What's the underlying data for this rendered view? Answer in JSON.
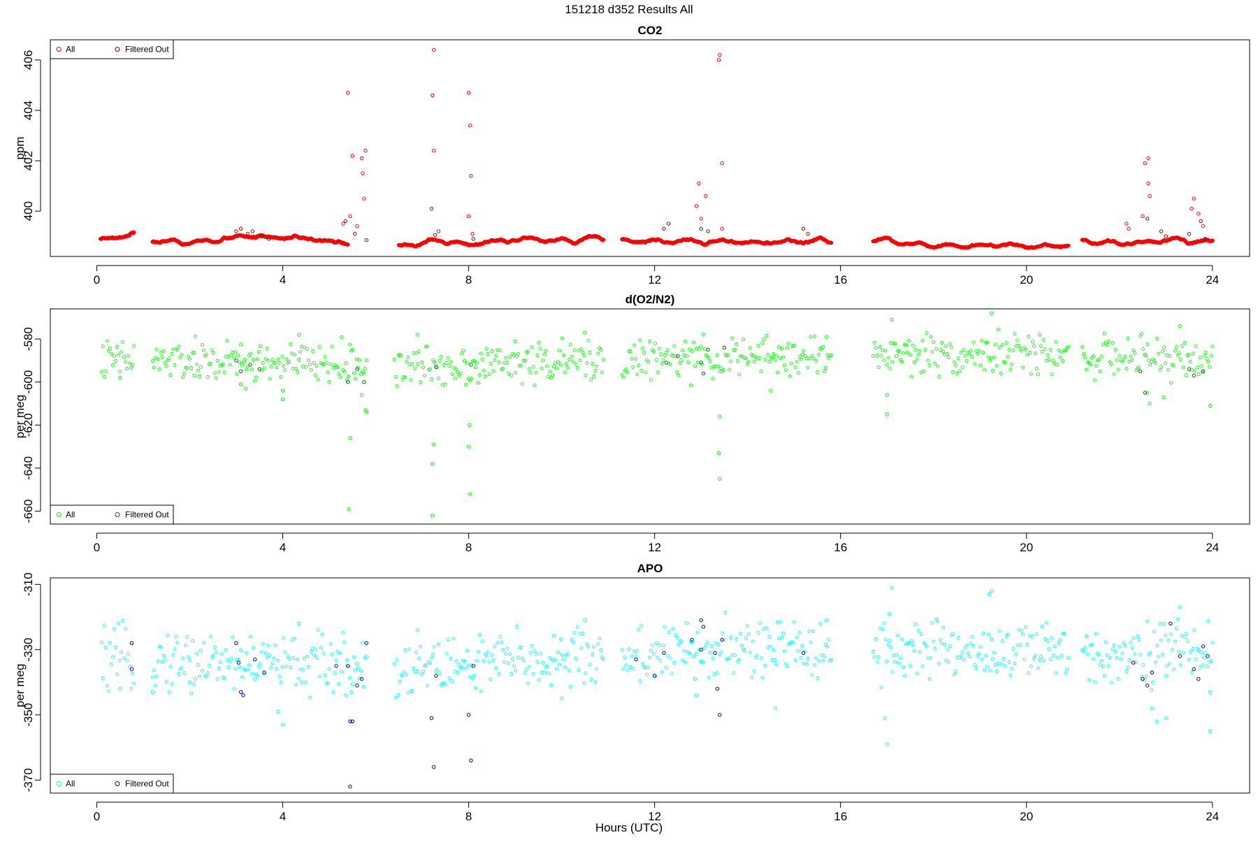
{
  "figure": {
    "title": "151218   d352   Results All",
    "xlabel": "Hours (UTC)"
  },
  "chart_data": [
    {
      "type": "scatter",
      "title": "CO2",
      "xlabel": "",
      "ylabel": "ppm",
      "xlim": [
        -1.0,
        24.8
      ],
      "ylim": [
        398.2,
        406.8
      ],
      "xticks": [
        0,
        4,
        8,
        12,
        16,
        20,
        24
      ],
      "yticks": [
        400,
        402,
        404,
        406
      ],
      "grid": false,
      "legend_position": "top-left",
      "colors": {
        "all": "#ff0000",
        "filtered": "#8b0000"
      },
      "legend": [
        "All",
        "Filtered Out"
      ],
      "segments": [
        {
          "x": [
            0.08,
            0.8
          ],
          "y": [
            398.85,
            399.1
          ]
        },
        {
          "x": [
            1.2,
            5.4
          ],
          "y": [
            398.85,
            398.85
          ]
        },
        {
          "x": [
            6.5,
            10.9
          ],
          "y": [
            398.6,
            398.75
          ]
        },
        {
          "x": [
            11.3,
            15.8
          ],
          "y": [
            398.85,
            399.0
          ]
        },
        {
          "x": [
            16.7,
            20.9
          ],
          "y": [
            398.85,
            398.8
          ]
        },
        {
          "x": [
            21.2,
            24.0
          ],
          "y": [
            398.8,
            398.8
          ]
        }
      ],
      "series": [
        {
          "name": "All",
          "points": [
            [
              5.4,
              404.7
            ],
            [
              5.5,
              402.2
            ],
            [
              5.7,
              402.1
            ],
            [
              5.78,
              402.4
            ],
            [
              5.72,
              401.5
            ],
            [
              5.75,
              400.5
            ],
            [
              5.3,
              399.5
            ],
            [
              5.45,
              399.8
            ],
            [
              5.6,
              399.4
            ],
            [
              7.25,
              406.4
            ],
            [
              7.22,
              404.6
            ],
            [
              7.25,
              402.4
            ],
            [
              7.2,
              400.1
            ],
            [
              7.35,
              399.2
            ],
            [
              8.0,
              404.7
            ],
            [
              8.03,
              403.4
            ],
            [
              8.05,
              401.4
            ],
            [
              8.0,
              399.8
            ],
            [
              8.08,
              399.1
            ],
            [
              12.9,
              400.2
            ],
            [
              12.95,
              401.1
            ],
            [
              13.1,
              400.6
            ],
            [
              13.0,
              399.7
            ],
            [
              13.4,
              406.2
            ],
            [
              13.38,
              406.0
            ],
            [
              13.45,
              401.9
            ],
            [
              13.45,
              399.3
            ],
            [
              22.55,
              401.9
            ],
            [
              22.62,
              402.1
            ],
            [
              22.62,
              401.1
            ],
            [
              22.65,
              400.6
            ],
            [
              22.5,
              399.8
            ],
            [
              23.6,
              400.5
            ],
            [
              23.55,
              400.1
            ],
            [
              23.7,
              399.9
            ],
            [
              23.8,
              399.4
            ],
            [
              22.15,
              399.5
            ],
            [
              22.2,
              399.3
            ]
          ]
        },
        {
          "name": "Filtered Out",
          "points": [
            [
              3.0,
              399.2
            ],
            [
              3.1,
              399.3
            ],
            [
              3.25,
              399.1
            ],
            [
              3.35,
              399.2
            ],
            [
              3.55,
              399.0
            ],
            [
              3.7,
              398.9
            ],
            [
              5.35,
              399.6
            ],
            [
              5.55,
              399.1
            ],
            [
              5.8,
              398.85
            ],
            [
              7.28,
              399.05
            ],
            [
              8.1,
              398.9
            ],
            [
              12.2,
              399.3
            ],
            [
              12.3,
              399.5
            ],
            [
              13.0,
              399.3
            ],
            [
              13.15,
              399.2
            ],
            [
              15.2,
              399.3
            ],
            [
              15.3,
              399.1
            ],
            [
              22.6,
              399.7
            ],
            [
              22.9,
              399.2
            ],
            [
              23.0,
              399.0
            ],
            [
              23.5,
              399.1
            ],
            [
              23.75,
              399.6
            ],
            [
              23.85,
              398.9
            ]
          ]
        }
      ]
    },
    {
      "type": "scatter",
      "title": "d(O2/N2)",
      "xlabel": "",
      "ylabel": "per meg",
      "xlim": [
        -1.0,
        24.8
      ],
      "ylim": [
        -666.0,
        -566.0
      ],
      "xticks": [
        0,
        4,
        8,
        12,
        16,
        20,
        24
      ],
      "yticks": [
        -580,
        -600,
        -620,
        -640,
        -660
      ],
      "grid": false,
      "legend_position": "bottom-left",
      "colors": {
        "all": "#00ff00",
        "filtered": "#006400"
      },
      "legend": [
        "All",
        "Filtered Out"
      ],
      "segments": [
        {
          "x": [
            0.1,
            0.8
          ],
          "y": [
            -590.0,
            -590.0
          ]
        },
        {
          "x": [
            1.2,
            5.8
          ],
          "y": [
            -590.0,
            -592.0
          ]
        },
        {
          "x": [
            6.4,
            10.9
          ],
          "y": [
            -593.0,
            -590.0
          ]
        },
        {
          "x": [
            11.3,
            15.8
          ],
          "y": [
            -590.0,
            -588.0
          ]
        },
        {
          "x": [
            16.7,
            20.9
          ],
          "y": [
            -587.0,
            -587.0
          ]
        },
        {
          "x": [
            21.2,
            24.0
          ],
          "y": [
            -588.0,
            -590.0
          ]
        }
      ],
      "series": [
        {
          "name": "All",
          "points": [
            [
              5.45,
              -626.0
            ],
            [
              5.42,
              -659.0
            ],
            [
              5.7,
              -606.0
            ],
            [
              5.78,
              -613.0
            ],
            [
              5.8,
              -614.0
            ],
            [
              7.25,
              -629.0
            ],
            [
              7.22,
              -638.0
            ],
            [
              7.22,
              -662.0
            ],
            [
              8.02,
              -620.0
            ],
            [
              8.0,
              -630.0
            ],
            [
              8.03,
              -652.0
            ],
            [
              13.4,
              -616.0
            ],
            [
              13.38,
              -633.0
            ],
            [
              13.4,
              -645.0
            ],
            [
              17.0,
              -606.0
            ],
            [
              17.0,
              -615.0
            ],
            [
              17.1,
              -571.0
            ],
            [
              19.25,
              -568.0
            ],
            [
              22.6,
              -605.0
            ],
            [
              22.65,
              -610.0
            ],
            [
              22.95,
              -607.0
            ],
            [
              23.3,
              -574.0
            ],
            [
              23.95,
              -611.0
            ],
            [
              3.1,
              -601.0
            ],
            [
              3.2,
              -603.0
            ],
            [
              4.0,
              -604.0
            ],
            [
              4.0,
              -608.0
            ],
            [
              4.35,
              -578.0
            ],
            [
              0.5,
              -598.0
            ],
            [
              2.1,
              -597.0
            ],
            [
              10.5,
              -577.0
            ],
            [
              9.0,
              -581.0
            ],
            [
              6.9,
              -578.0
            ],
            [
              14.5,
              -604.0
            ],
            [
              15.7,
              -579.0
            ]
          ]
        },
        {
          "name": "Filtered Out",
          "points": [
            [
              3.0,
              -590.0
            ],
            [
              3.1,
              -595.0
            ],
            [
              3.3,
              -592.0
            ],
            [
              3.5,
              -594.0
            ],
            [
              5.4,
              -600.0
            ],
            [
              5.6,
              -594.0
            ],
            [
              5.75,
              -600.0
            ],
            [
              7.3,
              -593.0
            ],
            [
              8.05,
              -592.0
            ],
            [
              12.25,
              -591.0
            ],
            [
              12.5,
              -588.0
            ],
            [
              13.0,
              -591.0
            ],
            [
              13.05,
              -596.0
            ],
            [
              13.15,
              -585.0
            ],
            [
              13.5,
              -584.0
            ],
            [
              22.45,
              -595.0
            ],
            [
              22.55,
              -605.0
            ],
            [
              23.5,
              -594.0
            ],
            [
              23.6,
              -597.0
            ],
            [
              23.8,
              -595.0
            ]
          ]
        }
      ]
    },
    {
      "type": "scatter",
      "title": "APO",
      "xlabel": "Hours (UTC)",
      "ylabel": "per meg",
      "xlim": [
        -1.0,
        24.8
      ],
      "ylim": [
        -374.0,
        -308.0
      ],
      "xticks": [
        0,
        4,
        8,
        12,
        16,
        20,
        24
      ],
      "yticks": [
        -310,
        -330,
        -350,
        -370
      ],
      "grid": false,
      "legend_position": "bottom-left",
      "colors": {
        "all": "#00ffff",
        "filtered": "#00008b"
      },
      "legend": [
        "All",
        "Filtered Out"
      ],
      "segments": [
        {
          "x": [
            0.1,
            0.8
          ],
          "y": [
            -334.0,
            -333.0
          ]
        },
        {
          "x": [
            1.2,
            5.8
          ],
          "y": [
            -333.0,
            -335.0
          ]
        },
        {
          "x": [
            6.4,
            10.9
          ],
          "y": [
            -336.0,
            -332.0
          ]
        },
        {
          "x": [
            11.3,
            15.8
          ],
          "y": [
            -332.0,
            -329.0
          ]
        },
        {
          "x": [
            16.7,
            20.9
          ],
          "y": [
            -330.0,
            -331.0
          ]
        },
        {
          "x": [
            21.2,
            24.0
          ],
          "y": [
            -331.0,
            -330.0
          ]
        }
      ],
      "series": [
        {
          "name": "All",
          "points": [
            [
              16.95,
              -351.0
            ],
            [
              17.0,
              -359.0
            ],
            [
              17.1,
              -311.0
            ],
            [
              17.05,
              -319.0
            ],
            [
              19.25,
              -312.0
            ],
            [
              19.2,
              -313.0
            ],
            [
              22.7,
              -348.0
            ],
            [
              22.8,
              -352.0
            ],
            [
              23.0,
              -351.0
            ],
            [
              23.0,
              -338.0
            ],
            [
              23.3,
              -317.0
            ],
            [
              23.95,
              -355.0
            ],
            [
              23.95,
              -343.0
            ],
            [
              4.0,
              -353.0
            ],
            [
              3.9,
              -349.0
            ],
            [
              4.35,
              -322.0
            ],
            [
              10.0,
              -345.0
            ],
            [
              10.5,
              -321.0
            ],
            [
              6.9,
              -324.0
            ],
            [
              14.6,
              -348.0
            ],
            [
              15.7,
              -321.0
            ],
            [
              1.2,
              -343.0
            ],
            [
              0.5,
              -342.0
            ],
            [
              2.0,
              -340.0
            ],
            [
              12.9,
              -344.0
            ]
          ]
        },
        {
          "name": "Filtered Out",
          "points": [
            [
              0.75,
              -328.0
            ],
            [
              0.75,
              -336.0
            ],
            [
              3.0,
              -328.0
            ],
            [
              3.05,
              -334.0
            ],
            [
              3.1,
              -343.0
            ],
            [
              3.15,
              -344.0
            ],
            [
              3.4,
              -333.0
            ],
            [
              3.6,
              -337.0
            ],
            [
              5.15,
              -335.0
            ],
            [
              5.4,
              -335.0
            ],
            [
              5.45,
              -352.0
            ],
            [
              5.5,
              -352.0
            ],
            [
              5.45,
              -372.0
            ],
            [
              5.6,
              -341.0
            ],
            [
              5.7,
              -339.0
            ],
            [
              5.8,
              -328.0
            ],
            [
              7.2,
              -351.0
            ],
            [
              7.25,
              -366.0
            ],
            [
              7.3,
              -338.0
            ],
            [
              8.0,
              -350.0
            ],
            [
              8.05,
              -364.0
            ],
            [
              8.1,
              -335.0
            ],
            [
              11.6,
              -333.0
            ],
            [
              12.0,
              -338.0
            ],
            [
              12.2,
              -331.0
            ],
            [
              12.8,
              -327.0
            ],
            [
              13.0,
              -330.0
            ],
            [
              13.0,
              -321.0
            ],
            [
              13.05,
              -323.0
            ],
            [
              13.3,
              -331.0
            ],
            [
              13.35,
              -342.0
            ],
            [
              13.4,
              -350.0
            ],
            [
              13.45,
              -327.0
            ],
            [
              15.2,
              -331.0
            ],
            [
              22.3,
              -334.0
            ],
            [
              22.5,
              -339.0
            ],
            [
              22.6,
              -341.0
            ],
            [
              22.7,
              -337.0
            ],
            [
              23.1,
              -322.0
            ],
            [
              23.3,
              -332.0
            ],
            [
              23.6,
              -336.0
            ],
            [
              23.7,
              -339.0
            ],
            [
              23.8,
              -329.0
            ],
            [
              23.9,
              -332.0
            ]
          ]
        }
      ]
    }
  ]
}
